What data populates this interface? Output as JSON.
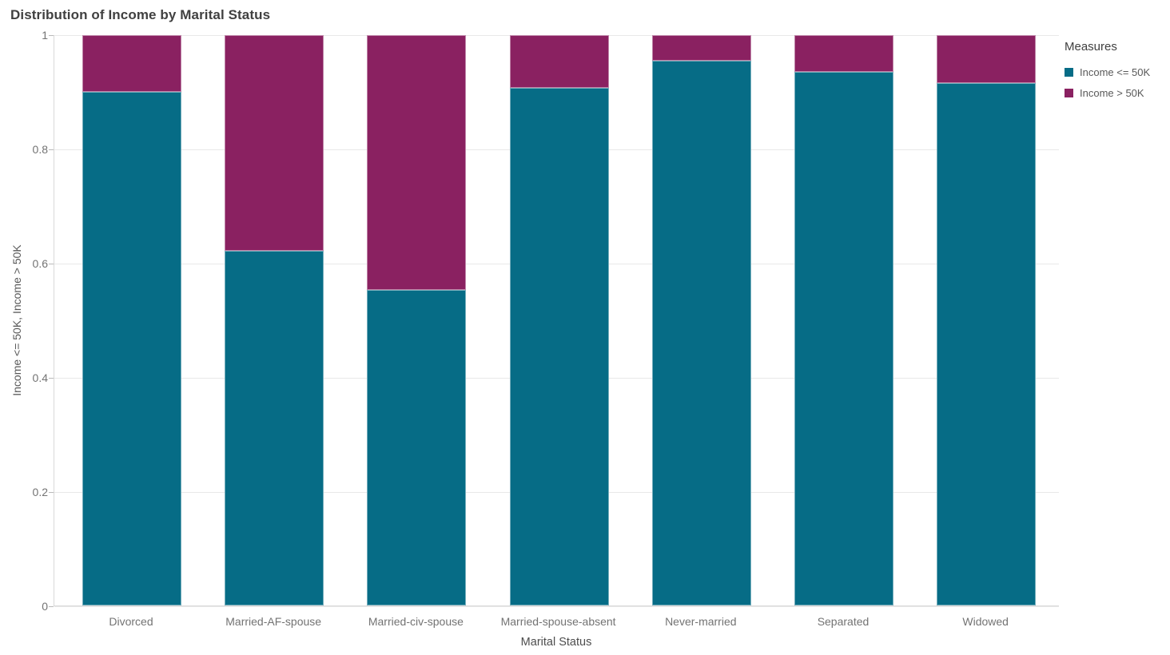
{
  "title": "Distribution of Income by Marital Status",
  "axes": {
    "x_title": "Marital Status",
    "y_title": "Income <= 50K, Income > 50K"
  },
  "legend": {
    "title": "Measures",
    "items": [
      {
        "label": "Income <= 50K",
        "color": "#066c86"
      },
      {
        "label": "Income > 50K",
        "color": "#8a2161"
      }
    ]
  },
  "chart_data": {
    "type": "bar",
    "stacked": true,
    "normalized": true,
    "title": "Distribution of Income by Marital Status",
    "xlabel": "Marital Status",
    "ylabel": "Income <= 50K, Income > 50K",
    "categories": [
      "Divorced",
      "Married-AF-spouse",
      "Married-civ-spouse",
      "Married-spouse-absent",
      "Never-married",
      "Separated",
      "Widowed"
    ],
    "series": [
      {
        "name": "Income <= 50K",
        "color": "#066c86",
        "values": [
          0.9,
          0.622,
          0.553,
          0.908,
          0.955,
          0.936,
          0.916
        ]
      },
      {
        "name": "Income > 50K",
        "color": "#8a2161",
        "values": [
          0.1,
          0.378,
          0.447,
          0.092,
          0.045,
          0.064,
          0.084
        ]
      }
    ],
    "ylim": [
      0,
      1
    ],
    "yticks": [
      "0",
      "0.2",
      "0.4",
      "0.6",
      "0.8",
      "1"
    ],
    "grid": true,
    "legend_position": "top-right"
  }
}
